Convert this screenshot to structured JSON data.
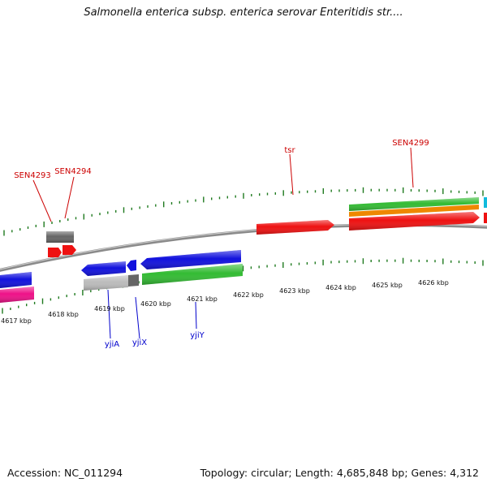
{
  "header": {
    "title": "Salmonella enterica subsp. enterica serovar Enteritidis str...."
  },
  "footer": {
    "accession": "Accession: NC_011294",
    "summary": "Topology: circular; Length: 4,685,848 bp; Genes: 4,312"
  },
  "map": {
    "scale_labels": [
      "4617 kbp",
      "4618 kbp",
      "4619 kbp",
      "4620 kbp",
      "4621 kbp",
      "4622 kbp",
      "4623 kbp",
      "4624 kbp",
      "4625 kbp",
      "4626 kbp"
    ],
    "forward_gene_labels": [
      "SEN4293",
      "SEN4294",
      "tsr",
      "SEN4299"
    ],
    "reverse_gene_labels": [
      "yjiA",
      "yjiX",
      "yjiY"
    ],
    "colors": {
      "backbone": "#8a8a8a",
      "tick": "#1f7a1f",
      "cds": "#ee1111",
      "gene": "#666666",
      "reverse_cds": "#1111dd",
      "reverse_gene": "#bbbbbb",
      "green_track": "#33bb33",
      "orange_track": "#ee8800",
      "pink_track": "#ee1188",
      "cyan_track": "#11bbdd",
      "forward_label": "#cc0000",
      "reverse_label": "#0000cc"
    }
  }
}
